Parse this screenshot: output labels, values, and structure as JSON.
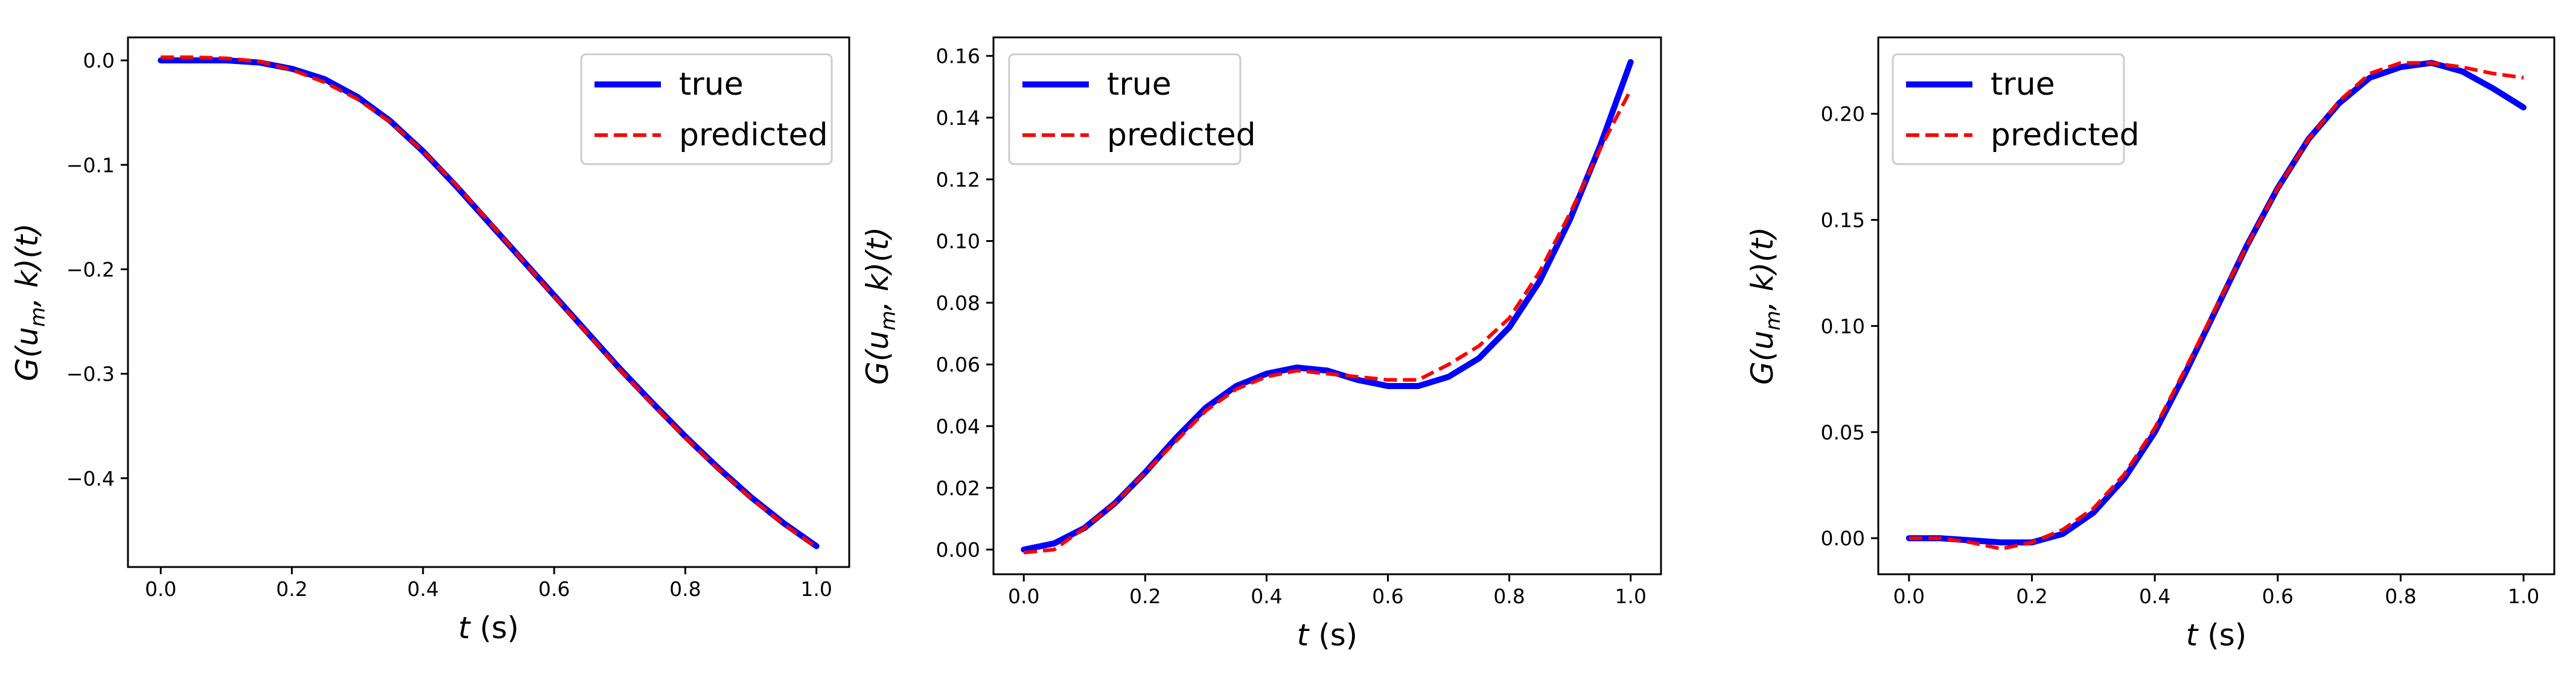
{
  "figure": {
    "background": "#ffffff"
  },
  "chart_data": [
    {
      "type": "line",
      "xlabel_var": "t",
      "xlabel_unit": " (s)",
      "ylabel": "G(u_m, k)(t)",
      "ylabel_parts": {
        "g": "G(",
        "u": "u",
        "sub": "m",
        "rest": ", k)(t)"
      },
      "xlim": [
        -0.05,
        1.05
      ],
      "ylim": [
        -0.485,
        0.022
      ],
      "xticks": [
        0.0,
        0.2,
        0.4,
        0.6,
        0.8,
        1.0
      ],
      "xtick_labels": [
        "0.0",
        "0.2",
        "0.4",
        "0.6",
        "0.8",
        "1.0"
      ],
      "yticks": [
        0.0,
        -0.1,
        -0.2,
        -0.3,
        -0.4
      ],
      "ytick_labels": [
        "0.0",
        "−0.1",
        "−0.2",
        "−0.3",
        "−0.4"
      ],
      "legend_position": "top-right",
      "series": [
        {
          "name": "true",
          "color": "#0000ff",
          "style": "solid",
          "x": [
            0.0,
            0.05,
            0.1,
            0.15,
            0.2,
            0.25,
            0.3,
            0.35,
            0.4,
            0.45,
            0.5,
            0.55,
            0.6,
            0.65,
            0.7,
            0.75,
            0.8,
            0.85,
            0.9,
            0.95,
            1.0
          ],
          "y": [
            0.0,
            0.0,
            0.0,
            -0.002,
            -0.008,
            -0.018,
            -0.035,
            -0.058,
            -0.087,
            -0.12,
            -0.155,
            -0.19,
            -0.225,
            -0.26,
            -0.295,
            -0.328,
            -0.36,
            -0.39,
            -0.418,
            -0.443,
            -0.465
          ]
        },
        {
          "name": "predicted",
          "color": "#ff0000",
          "style": "dashed",
          "x": [
            0.0,
            0.05,
            0.1,
            0.15,
            0.2,
            0.25,
            0.3,
            0.35,
            0.4,
            0.45,
            0.5,
            0.55,
            0.6,
            0.65,
            0.7,
            0.75,
            0.8,
            0.85,
            0.9,
            0.95,
            1.0
          ],
          "y": [
            0.003,
            0.003,
            0.002,
            -0.001,
            -0.009,
            -0.021,
            -0.037,
            -0.059,
            -0.087,
            -0.119,
            -0.154,
            -0.19,
            -0.226,
            -0.261,
            -0.296,
            -0.329,
            -0.361,
            -0.391,
            -0.419,
            -0.444,
            -0.466
          ]
        }
      ]
    },
    {
      "type": "line",
      "xlabel_var": "t",
      "xlabel_unit": " (s)",
      "ylabel": "G(u_m, k)(t)",
      "ylabel_parts": {
        "g": "G(",
        "u": "u",
        "sub": "m",
        "rest": ", k)(t)"
      },
      "xlim": [
        -0.05,
        1.05
      ],
      "ylim": [
        -0.008,
        0.166
      ],
      "xticks": [
        0.0,
        0.2,
        0.4,
        0.6,
        0.8,
        1.0
      ],
      "xtick_labels": [
        "0.0",
        "0.2",
        "0.4",
        "0.6",
        "0.8",
        "1.0"
      ],
      "yticks": [
        0.0,
        0.02,
        0.04,
        0.06,
        0.08,
        0.1,
        0.12,
        0.14,
        0.16
      ],
      "ytick_labels": [
        "0.00",
        "0.02",
        "0.04",
        "0.06",
        "0.08",
        "0.10",
        "0.12",
        "0.14",
        "0.16"
      ],
      "legend_position": "top-left",
      "series": [
        {
          "name": "true",
          "color": "#0000ff",
          "style": "solid",
          "x": [
            0.0,
            0.05,
            0.1,
            0.15,
            0.2,
            0.25,
            0.3,
            0.35,
            0.4,
            0.45,
            0.5,
            0.55,
            0.6,
            0.65,
            0.7,
            0.75,
            0.8,
            0.85,
            0.9,
            0.95,
            1.0
          ],
          "y": [
            0.0,
            0.002,
            0.007,
            0.015,
            0.025,
            0.036,
            0.046,
            0.053,
            0.057,
            0.059,
            0.058,
            0.055,
            0.053,
            0.053,
            0.056,
            0.062,
            0.072,
            0.087,
            0.107,
            0.131,
            0.158
          ]
        },
        {
          "name": "predicted",
          "color": "#ff0000",
          "style": "dashed",
          "x": [
            0.0,
            0.05,
            0.1,
            0.15,
            0.2,
            0.25,
            0.3,
            0.35,
            0.4,
            0.45,
            0.5,
            0.55,
            0.6,
            0.65,
            0.7,
            0.75,
            0.8,
            0.85,
            0.9,
            0.95,
            1.0
          ],
          "y": [
            -0.001,
            0.0,
            0.007,
            0.015,
            0.025,
            0.035,
            0.045,
            0.052,
            0.056,
            0.058,
            0.057,
            0.056,
            0.055,
            0.055,
            0.06,
            0.066,
            0.075,
            0.09,
            0.109,
            0.13,
            0.149
          ]
        }
      ]
    },
    {
      "type": "line",
      "xlabel_var": "t",
      "xlabel_unit": " (s)",
      "ylabel": "G(u_m, k)(t)",
      "ylabel_parts": {
        "g": "G(",
        "u": "u",
        "sub": "m",
        "rest": ", k)(t)"
      },
      "xlim": [
        -0.05,
        1.05
      ],
      "ylim": [
        -0.017,
        0.236
      ],
      "xticks": [
        0.0,
        0.2,
        0.4,
        0.6,
        0.8,
        1.0
      ],
      "xtick_labels": [
        "0.0",
        "0.2",
        "0.4",
        "0.6",
        "0.8",
        "1.0"
      ],
      "yticks": [
        0.0,
        0.05,
        0.1,
        0.15,
        0.2
      ],
      "ytick_labels": [
        "0.00",
        "0.05",
        "0.10",
        "0.15",
        "0.20"
      ],
      "legend_position": "top-left",
      "series": [
        {
          "name": "true",
          "color": "#0000ff",
          "style": "solid",
          "x": [
            0.0,
            0.05,
            0.1,
            0.15,
            0.2,
            0.25,
            0.3,
            0.35,
            0.4,
            0.45,
            0.5,
            0.55,
            0.6,
            0.65,
            0.7,
            0.75,
            0.8,
            0.85,
            0.9,
            0.95,
            1.0
          ],
          "y": [
            0.0,
            0.0,
            -0.001,
            -0.002,
            -0.002,
            0.002,
            0.012,
            0.028,
            0.05,
            0.078,
            0.108,
            0.138,
            0.165,
            0.188,
            0.205,
            0.217,
            0.222,
            0.224,
            0.22,
            0.212,
            0.203
          ]
        },
        {
          "name": "predicted",
          "color": "#ff0000",
          "style": "dashed",
          "x": [
            0.0,
            0.05,
            0.1,
            0.15,
            0.2,
            0.25,
            0.3,
            0.35,
            0.4,
            0.45,
            0.5,
            0.55,
            0.6,
            0.65,
            0.7,
            0.75,
            0.8,
            0.85,
            0.9,
            0.95,
            1.0
          ],
          "y": [
            0.0,
            0.0,
            -0.002,
            -0.005,
            -0.002,
            0.004,
            0.014,
            0.03,
            0.052,
            0.08,
            0.109,
            0.138,
            0.165,
            0.188,
            0.206,
            0.219,
            0.224,
            0.224,
            0.222,
            0.219,
            0.217
          ]
        }
      ]
    }
  ]
}
